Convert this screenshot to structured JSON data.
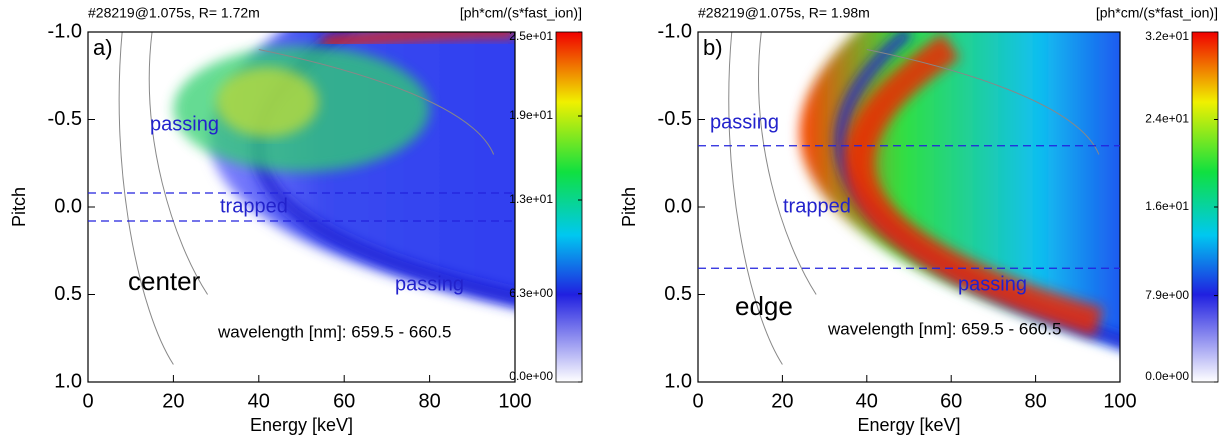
{
  "chart_data": [
    {
      "type": "heatmap",
      "title": "#28219@1.075s, R=  1.72m",
      "colorbar_label": "[ph*cm/(s*fast_ion)]",
      "panel_label": "a)",
      "xlabel": "Energy [keV]",
      "ylabel": "Pitch",
      "xlim": [
        0,
        100
      ],
      "xticks": [
        0,
        20,
        40,
        60,
        80,
        100
      ],
      "ylim": [
        -1,
        1
      ],
      "yticks": [
        {
          "value": -1,
          "label": "-1.0"
        },
        -0.5,
        {
          "value": 0,
          "label": "0.0"
        },
        0.5,
        {
          "value": 1,
          "label": "1.0"
        }
      ],
      "clim": [
        0,
        25
      ],
      "cticks": [
        {
          "value": 0,
          "label": "0.0e+00"
        },
        {
          "value": 6.3,
          "label": "6.3e+00"
        },
        {
          "value": 13,
          "label": "1.3e+01"
        },
        {
          "value": 19,
          "label": "1.9e+01"
        },
        {
          "value": 25,
          "label": "2.5e+01"
        }
      ],
      "hlines": [
        -0.08,
        0.08
      ],
      "hline_color": "#2222dd",
      "annotations": [
        {
          "text": "passing",
          "color": "#2222cc"
        },
        {
          "text": "trapped",
          "color": "#2222cc"
        },
        {
          "text": "center",
          "color": "#000000"
        },
        {
          "text": "passing",
          "color": "#2222cc"
        },
        {
          "text": "wavelength [nm]: 659.5 - 660.5",
          "color": "#000000"
        }
      ]
    },
    {
      "type": "heatmap",
      "title": "#28219@1.075s, R=  1.98m",
      "colorbar_label": "[ph*cm/(s*fast_ion)]",
      "panel_label": "b)",
      "xlabel": "Energy [keV]",
      "ylabel": "Pitch",
      "xlim": [
        0,
        100
      ],
      "xticks": [
        0,
        20,
        40,
        60,
        80,
        100
      ],
      "ylim": [
        -1,
        1
      ],
      "yticks": [
        {
          "value": -1,
          "label": "-1.0"
        },
        -0.5,
        {
          "value": 0,
          "label": "0.0"
        },
        0.5,
        {
          "value": 1,
          "label": "1.0"
        }
      ],
      "clim": [
        0,
        32
      ],
      "cticks": [
        {
          "value": 0,
          "label": "0.0e+00"
        },
        {
          "value": 7.9,
          "label": "7.9e+00"
        },
        {
          "value": 16,
          "label": "1.6e+01"
        },
        {
          "value": 24,
          "label": "2.4e+01"
        },
        {
          "value": 32,
          "label": "3.2e+01"
        }
      ],
      "hlines": [
        -0.35,
        0.35
      ],
      "hline_color": "#2222dd",
      "annotations": [
        {
          "text": "passing",
          "color": "#2222cc"
        },
        {
          "text": "trapped",
          "color": "#2222cc"
        },
        {
          "text": "edge",
          "color": "#000000"
        },
        {
          "text": "passing",
          "color": "#2222cc"
        },
        {
          "text": "wavelength [nm]: 659.5 - 660.5",
          "color": "#000000"
        }
      ]
    }
  ]
}
